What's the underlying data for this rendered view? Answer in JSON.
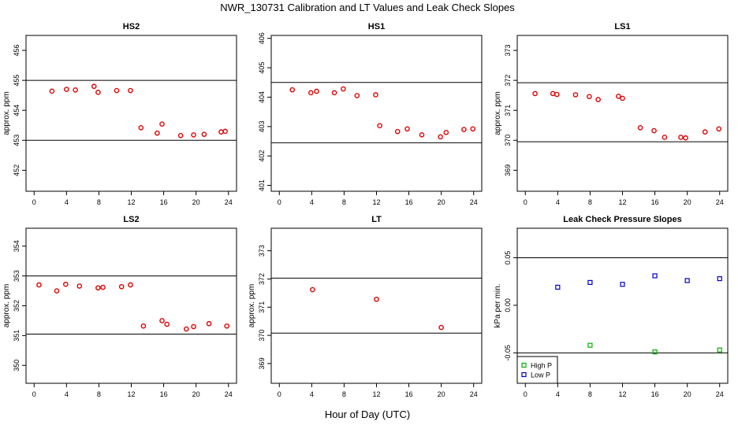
{
  "title": "NWR_130731  Calibration and LT Values and Leak Check Slopes",
  "xlabel": "Hour of Day (UTC)",
  "colors": {
    "cal": "#e00000",
    "high_p": "#00b000",
    "low_p": "#0000cc",
    "axis": "#000000"
  },
  "chart_data": [
    {
      "type": "scatter",
      "title": "HS2",
      "ylabel": "approx. ppm",
      "xlim": [
        -1,
        25
      ],
      "xticks": [
        0,
        4,
        8,
        12,
        16,
        20,
        24
      ],
      "xtick_labels": [
        "0",
        "4",
        "8",
        "12",
        "16",
        "20",
        "24"
      ],
      "ylim": [
        451.3,
        456.5
      ],
      "yticks": [
        452,
        453,
        454,
        455,
        456
      ],
      "ytick_labels": [
        "452",
        "453",
        "454",
        "455",
        "456"
      ],
      "hlines": [
        455.0,
        453.0
      ],
      "series": [
        {
          "color": "cal",
          "marker": "circle",
          "x": [
            2.2,
            4.0,
            5.1,
            7.4,
            7.9,
            10.2,
            11.9,
            13.2,
            15.2,
            15.8,
            18.1,
            19.7,
            21.0,
            23.1,
            23.6
          ],
          "y": [
            454.64,
            454.7,
            454.68,
            454.8,
            454.6,
            454.66,
            454.66,
            453.42,
            453.24,
            453.54,
            453.16,
            453.18,
            453.2,
            453.28,
            453.3
          ]
        }
      ]
    },
    {
      "type": "scatter",
      "title": "HS1",
      "ylabel": "",
      "xlim": [
        -1,
        25
      ],
      "xticks": [
        0,
        4,
        8,
        12,
        16,
        20,
        24
      ],
      "xtick_labels": [
        "0",
        "4",
        "8",
        "12",
        "16",
        "20",
        "24"
      ],
      "ylim": [
        400.8,
        406.1
      ],
      "yticks": [
        401,
        402,
        403,
        404,
        405,
        406
      ],
      "ytick_labels": [
        "401",
        "402",
        "403",
        "404",
        "405",
        "406"
      ],
      "hlines": [
        404.5,
        402.45
      ],
      "series": [
        {
          "color": "cal",
          "marker": "circle",
          "x": [
            1.6,
            3.9,
            4.6,
            6.8,
            7.9,
            9.6,
            11.9,
            12.4,
            14.6,
            15.8,
            17.6,
            19.9,
            20.6,
            22.8,
            23.9
          ],
          "y": [
            404.25,
            404.15,
            404.2,
            404.15,
            404.28,
            404.05,
            404.08,
            403.03,
            402.83,
            402.92,
            402.72,
            402.65,
            402.8,
            402.9,
            402.92
          ]
        }
      ]
    },
    {
      "type": "scatter",
      "title": "LS1",
      "ylabel": "approx. ppm",
      "xlim": [
        -1,
        25
      ],
      "xticks": [
        0,
        4,
        8,
        12,
        16,
        20,
        24
      ],
      "xtick_labels": [
        "0",
        "4",
        "8",
        "12",
        "16",
        "20",
        "24"
      ],
      "ylim": [
        368.3,
        373.5
      ],
      "yticks": [
        369,
        370,
        371,
        372,
        373
      ],
      "ytick_labels": [
        "369",
        "370",
        "371",
        "372",
        "373"
      ],
      "hlines": [
        371.92,
        369.95
      ],
      "series": [
        {
          "color": "cal",
          "marker": "circle",
          "x": [
            1.2,
            3.4,
            3.9,
            6.2,
            7.9,
            9.0,
            11.5,
            12.0,
            14.2,
            15.9,
            17.2,
            19.2,
            19.8,
            22.2,
            23.9
          ],
          "y": [
            371.56,
            371.56,
            371.53,
            371.52,
            371.46,
            371.36,
            371.47,
            371.4,
            370.42,
            370.32,
            370.1,
            370.1,
            370.08,
            370.28,
            370.38
          ]
        }
      ]
    },
    {
      "type": "scatter",
      "title": "LS2",
      "ylabel": "approx. ppm",
      "xlim": [
        -1,
        25
      ],
      "xticks": [
        0,
        4,
        8,
        12,
        16,
        20,
        24
      ],
      "xtick_labels": [
        "0",
        "4",
        "8",
        "12",
        "16",
        "20",
        "24"
      ],
      "ylim": [
        349.4,
        354.6
      ],
      "yticks": [
        350,
        351,
        352,
        353,
        354
      ],
      "ytick_labels": [
        "350",
        "351",
        "352",
        "353",
        "354"
      ],
      "hlines": [
        353.0,
        351.05
      ],
      "series": [
        {
          "color": "cal",
          "marker": "circle",
          "x": [
            0.6,
            2.8,
            3.9,
            5.6,
            7.9,
            8.5,
            10.8,
            11.9,
            13.5,
            15.8,
            16.4,
            18.8,
            19.7,
            21.6,
            23.8
          ],
          "y": [
            352.7,
            352.5,
            352.72,
            352.66,
            352.6,
            352.62,
            352.64,
            352.7,
            351.32,
            351.5,
            351.38,
            351.22,
            351.3,
            351.4,
            351.32
          ]
        }
      ]
    },
    {
      "type": "scatter",
      "title": "LT",
      "ylabel": "approx. ppm",
      "xlim": [
        -1,
        25
      ],
      "xticks": [
        0,
        4,
        8,
        12,
        16,
        20,
        24
      ],
      "xtick_labels": [
        "0",
        "4",
        "8",
        "12",
        "16",
        "20",
        "24"
      ],
      "ylim": [
        368.3,
        373.8
      ],
      "yticks": [
        369,
        370,
        371,
        372,
        373
      ],
      "ytick_labels": [
        "369",
        "370",
        "371",
        "372",
        "373"
      ],
      "hlines": [
        372.03,
        370.08
      ],
      "series": [
        {
          "color": "cal",
          "marker": "circle",
          "x": [
            4.1,
            12.0,
            20.0
          ],
          "y": [
            371.62,
            371.28,
            370.28
          ]
        }
      ]
    },
    {
      "type": "scatter",
      "title": "Leak Check Pressure Slopes",
      "ylabel": "kPa per min.",
      "xlim": [
        -1,
        25
      ],
      "xticks": [
        0,
        4,
        8,
        12,
        16,
        20,
        24
      ],
      "xtick_labels": [
        "0",
        "4",
        "8",
        "12",
        "16",
        "20",
        "24"
      ],
      "ylim": [
        -0.082,
        0.081
      ],
      "yticks": [
        -0.05,
        0.0,
        0.05
      ],
      "ytick_labels": [
        "-0.05",
        "0.00",
        "0.05"
      ],
      "hlines": [
        0.05,
        -0.05
      ],
      "legend": {
        "position": "bottom-left",
        "entries": [
          "High P",
          "Low P"
        ]
      },
      "series": [
        {
          "name": "High P",
          "color": "high_p",
          "marker": "square",
          "x": [
            8,
            16,
            24
          ],
          "y": [
            -0.042,
            -0.049,
            -0.047
          ]
        },
        {
          "name": "Low P",
          "color": "low_p",
          "marker": "square",
          "x": [
            4,
            8,
            12,
            16,
            20,
            24
          ],
          "y": [
            0.019,
            0.024,
            0.022,
            0.031,
            0.026,
            0.028
          ]
        }
      ]
    }
  ]
}
